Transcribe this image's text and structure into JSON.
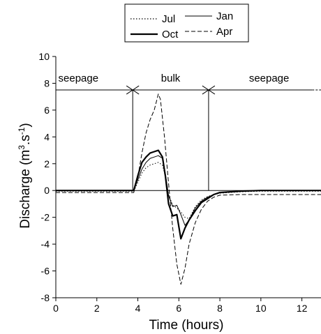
{
  "chart_data": {
    "type": "line",
    "title": "",
    "xlabel": "Time (hours)",
    "ylabel_main": "Discharge (m",
    "ylabel_sup1": "3",
    "ylabel_mid": ".s",
    "ylabel_sup2": "-1",
    "ylabel_end": ")",
    "xlim": [
      0,
      13
    ],
    "ylim": [
      -8,
      10
    ],
    "xticks": [
      0,
      2,
      4,
      6,
      8,
      10,
      12
    ],
    "xtick_labels": [
      "0",
      "2",
      "4",
      "6",
      "8",
      "10",
      "12"
    ],
    "yticks": [
      -8,
      -6,
      -4,
      -2,
      0,
      2,
      4,
      6,
      8,
      10
    ],
    "ytick_labels": [
      "-8",
      "-6",
      "-4",
      "-2",
      "0",
      "2",
      "4",
      "6",
      "8",
      "10"
    ],
    "grid": false,
    "legend_position": "top",
    "annotations": {
      "regions": [
        {
          "label": "seepage",
          "x": 1.1
        },
        {
          "label": "bulk",
          "x": 5.6
        },
        {
          "label": "seepage",
          "x": 10.4
        }
      ],
      "region_label_y": 8.4,
      "span_line_y": 7.5,
      "span_boundaries": [
        3.75,
        7.45
      ],
      "dashed_ext_x_start": 12.5,
      "zero_line": 0
    },
    "series": [
      {
        "name": "Jul",
        "style": "dotted",
        "stroke_width": 1,
        "x": [
          0,
          1,
          2,
          3,
          3.5,
          3.8,
          4.0,
          4.2,
          4.4,
          4.6,
          4.8,
          5.0,
          5.2,
          5.35,
          5.5,
          5.7,
          5.9,
          6.1,
          6.3,
          6.5,
          6.8,
          7.1,
          7.4,
          7.7,
          8.0,
          9,
          10,
          11,
          12,
          13
        ],
        "y": [
          -0.05,
          -0.05,
          -0.05,
          -0.05,
          -0.05,
          -0.05,
          0.6,
          1.3,
          1.7,
          1.9,
          2.0,
          2.1,
          1.9,
          1.0,
          -0.3,
          -1.1,
          -1.3,
          -1.6,
          -2.0,
          -2.1,
          -1.2,
          -0.7,
          -0.45,
          -0.3,
          -0.2,
          -0.1,
          -0.05,
          -0.05,
          -0.05,
          -0.05
        ]
      },
      {
        "name": "Jan",
        "style": "solid",
        "stroke_width": 1,
        "x": [
          0,
          1,
          2,
          3,
          3.5,
          3.8,
          4.0,
          4.2,
          4.4,
          4.6,
          4.8,
          5.0,
          5.2,
          5.35,
          5.5,
          5.7,
          5.9,
          6.1,
          6.3,
          6.5,
          6.8,
          7.1,
          7.4,
          7.7,
          8.0,
          9,
          10,
          11,
          12,
          13
        ],
        "y": [
          0,
          0,
          0,
          0,
          0,
          0,
          0.8,
          1.6,
          2.1,
          2.4,
          2.5,
          2.6,
          2.4,
          1.2,
          -0.4,
          -1.2,
          -1.1,
          -1.8,
          -2.6,
          -2.2,
          -1.3,
          -0.8,
          -0.5,
          -0.3,
          -0.15,
          -0.05,
          0,
          0,
          0,
          0
        ]
      },
      {
        "name": "Oct",
        "style": "solid",
        "stroke_width": 2.2,
        "x": [
          0,
          1,
          2,
          3,
          3.5,
          3.8,
          4.0,
          4.2,
          4.4,
          4.6,
          4.8,
          5.0,
          5.2,
          5.35,
          5.5,
          5.7,
          5.9,
          6.1,
          6.3,
          6.5,
          6.8,
          7.1,
          7.4,
          7.7,
          8.0,
          9,
          10,
          11,
          12,
          13
        ],
        "y": [
          0,
          0,
          0,
          0,
          0,
          0,
          1.1,
          2.1,
          2.5,
          2.8,
          2.9,
          3.0,
          2.5,
          1.0,
          -1.0,
          -1.9,
          -1.8,
          -3.6,
          -2.8,
          -2.2,
          -1.5,
          -0.9,
          -0.6,
          -0.3,
          -0.15,
          -0.05,
          0,
          0,
          0,
          0
        ]
      },
      {
        "name": "Apr",
        "style": "dashed",
        "stroke_width": 1,
        "x": [
          0,
          1,
          2,
          3,
          3.5,
          3.8,
          4.0,
          4.2,
          4.4,
          4.6,
          4.8,
          5.0,
          5.1,
          5.3,
          5.5,
          5.7,
          5.9,
          6.1,
          6.3,
          6.5,
          6.8,
          7.1,
          7.4,
          7.7,
          8.0,
          9,
          10,
          11,
          12,
          13
        ],
        "y": [
          -0.15,
          -0.15,
          -0.15,
          -0.15,
          -0.15,
          -0.15,
          1.0,
          2.8,
          4.3,
          5.3,
          6.0,
          7.2,
          6.8,
          4.0,
          0.5,
          -2.8,
          -5.5,
          -7.0,
          -5.8,
          -4.0,
          -2.4,
          -1.4,
          -0.8,
          -0.5,
          -0.35,
          -0.3,
          -0.3,
          -0.3,
          -0.3,
          -0.3
        ]
      }
    ]
  }
}
